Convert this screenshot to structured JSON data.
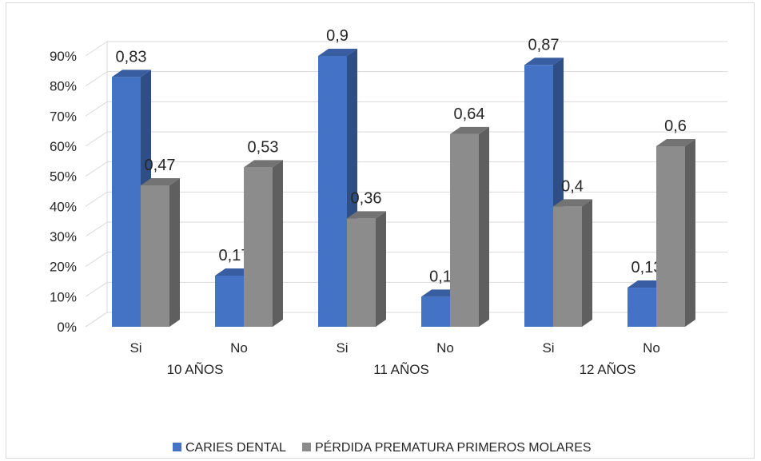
{
  "chart_data": {
    "type": "bar",
    "style": "3d-clustered-column",
    "groups": [
      "10 AÑOS",
      "11 AÑOS",
      "12 AÑOS"
    ],
    "categories": [
      "Si",
      "No",
      "Si",
      "No",
      "Si",
      "No"
    ],
    "series": [
      {
        "name": "CARIES DENTAL",
        "color": "#4472c4",
        "values": [
          0.83,
          0.17,
          0.9,
          0.1,
          0.87,
          0.13
        ],
        "labels": [
          "0,83",
          "0,17",
          "0,9",
          "0,1",
          "0,87",
          "0,13"
        ]
      },
      {
        "name": "PÉRDIDA PREMATURA PRIMEROS MOLARES",
        "color": "#8c8c8c",
        "values": [
          0.47,
          0.53,
          0.36,
          0.64,
          0.4,
          0.6
        ],
        "labels": [
          "0,47",
          "0,53",
          "0,36",
          "0,64",
          "0,4",
          "0,6"
        ]
      }
    ],
    "y_ticks": [
      "0%",
      "10%",
      "20%",
      "30%",
      "40%",
      "50%",
      "60%",
      "70%",
      "80%",
      "90%"
    ],
    "ylim": [
      0,
      0.9
    ],
    "grid": true,
    "legend_position": "bottom"
  }
}
